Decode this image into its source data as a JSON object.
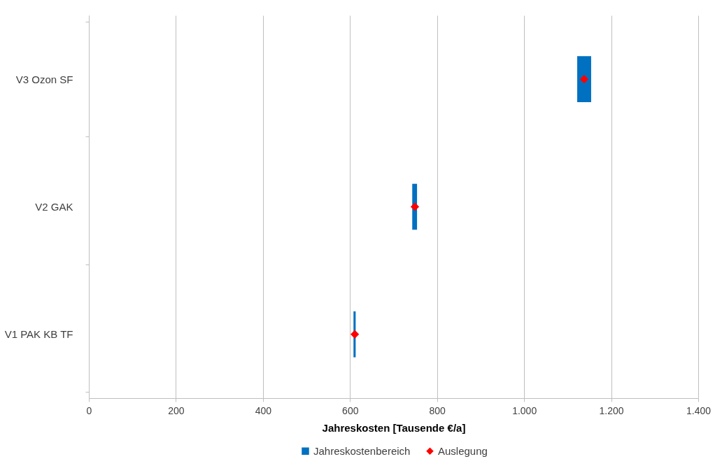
{
  "chart_data": {
    "type": "bar",
    "orientation": "horizontal",
    "xlabel": "Jahreskosten [Tausende €/a]",
    "categories": [
      "V3 Ozon SF",
      "V2 GAK",
      "V1 PAK KB TF"
    ],
    "series": [
      {
        "name": "Jahreskostenbereich",
        "color": "#0070c0",
        "base": [
          1122,
          743,
          608
        ],
        "values": [
          32,
          11,
          5
        ]
      },
      {
        "name": "Auslegung",
        "type": "scatter",
        "color": "#ff0000",
        "marker": "diamond",
        "values": [
          1138,
          749,
          611
        ]
      }
    ],
    "xlim": [
      0,
      1400
    ],
    "xticks": [
      0,
      200,
      400,
      600,
      800,
      {
        "value": 1000,
        "label": "1.000"
      },
      {
        "value": 1200,
        "label": "1.200"
      },
      {
        "value": 1400,
        "label": "1.400"
      }
    ],
    "grid": "x",
    "legend": "bottom"
  }
}
